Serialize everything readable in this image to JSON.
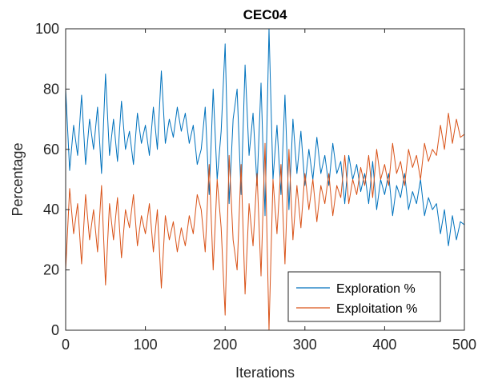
{
  "chart_data": {
    "type": "line",
    "title": "CEC04",
    "xlabel": "Iterations",
    "ylabel": "Percentage",
    "xlim": [
      0,
      500
    ],
    "ylim": [
      0,
      100
    ],
    "xticks": [
      0,
      100,
      200,
      300,
      400,
      500
    ],
    "yticks": [
      0,
      20,
      40,
      60,
      80,
      100
    ],
    "grid": false,
    "legend_position": "bottom-right",
    "x": [
      0,
      5,
      10,
      15,
      20,
      25,
      30,
      35,
      40,
      45,
      50,
      55,
      60,
      65,
      70,
      75,
      80,
      85,
      90,
      95,
      100,
      105,
      110,
      115,
      120,
      125,
      130,
      135,
      140,
      145,
      150,
      155,
      160,
      165,
      170,
      175,
      180,
      185,
      190,
      195,
      200,
      205,
      210,
      215,
      220,
      225,
      230,
      235,
      240,
      245,
      250,
      255,
      260,
      265,
      270,
      275,
      280,
      285,
      290,
      295,
      300,
      305,
      310,
      315,
      320,
      325,
      330,
      335,
      340,
      345,
      350,
      355,
      360,
      365,
      370,
      375,
      380,
      385,
      390,
      395,
      400,
      405,
      410,
      415,
      420,
      425,
      430,
      435,
      440,
      445,
      450,
      455,
      460,
      465,
      470,
      475,
      480,
      485,
      490,
      495,
      500
    ],
    "series": [
      {
        "name": "Exploration %",
        "color": "#0072BD",
        "values": [
          80,
          53,
          68,
          58,
          78,
          55,
          70,
          60,
          74,
          52,
          85,
          58,
          70,
          56,
          76,
          60,
          66,
          55,
          72,
          62,
          68,
          58,
          74,
          60,
          86,
          62,
          70,
          64,
          74,
          66,
          72,
          62,
          68,
          55,
          60,
          74,
          45,
          80,
          50,
          66,
          95,
          42,
          70,
          80,
          45,
          88,
          58,
          72,
          48,
          82,
          38,
          100,
          50,
          68,
          45,
          78,
          40,
          70,
          52,
          66,
          48,
          60,
          50,
          64,
          52,
          58,
          48,
          62,
          52,
          56,
          42,
          58,
          50,
          55,
          46,
          52,
          42,
          56,
          40,
          50,
          45,
          52,
          38,
          48,
          44,
          52,
          40,
          46,
          42,
          50,
          38,
          44,
          40,
          42,
          32,
          40,
          28,
          38,
          30,
          36,
          35
        ]
      },
      {
        "name": "Exploitation %",
        "color": "#D95319",
        "values": [
          20,
          47,
          32,
          42,
          22,
          45,
          30,
          40,
          26,
          48,
          15,
          42,
          30,
          44,
          24,
          40,
          34,
          45,
          28,
          38,
          32,
          42,
          26,
          40,
          14,
          38,
          30,
          36,
          26,
          34,
          28,
          38,
          32,
          45,
          40,
          26,
          55,
          20,
          50,
          34,
          5,
          58,
          30,
          20,
          55,
          12,
          42,
          28,
          52,
          18,
          62,
          0,
          50,
          32,
          55,
          22,
          60,
          30,
          48,
          34,
          52,
          40,
          50,
          36,
          48,
          42,
          52,
          38,
          48,
          44,
          58,
          42,
          50,
          45,
          54,
          48,
          58,
          44,
          60,
          50,
          55,
          48,
          62,
          52,
          56,
          48,
          60,
          54,
          58,
          50,
          62,
          56,
          60,
          58,
          68,
          60,
          72,
          62,
          70,
          64,
          65
        ]
      }
    ]
  }
}
